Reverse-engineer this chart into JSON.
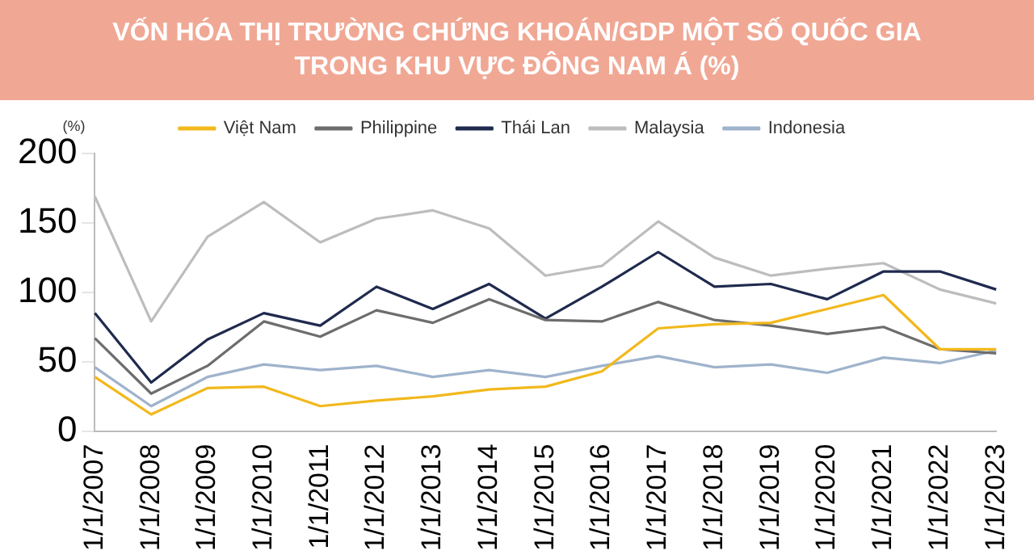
{
  "chart_data": {
    "type": "line",
    "title": "VỐN HÓA THỊ TRƯỜNG CHỨNG KHOÁN/GDP MỘT SỐ QUỐC GIA TRONG KHU VỰC ĐÔNG NAM Á (%)",
    "ylabel": "(%)",
    "categories": [
      "1/1/2007",
      "1/1/2008",
      "1/1/2009",
      "1/1/2010",
      "1/1/2011",
      "1/1/2012",
      "1/1/2013",
      "1/1/2014",
      "1/1/2015",
      "1/1/2016",
      "1/1/2017",
      "1/1/2018",
      "1/1/2019",
      "1/1/2020",
      "1/1/2021",
      "1/1/2022",
      "1/1/2023"
    ],
    "series": [
      {
        "name": "Việt Nam",
        "color": "#f2b81c",
        "values": [
          39,
          12,
          31,
          32,
          18,
          22,
          25,
          30,
          32,
          43,
          74,
          77,
          78,
          88,
          98,
          59,
          59
        ]
      },
      {
        "name": "Philippine",
        "color": "#6d6d6d",
        "values": [
          67,
          27,
          47,
          79,
          68,
          87,
          78,
          95,
          80,
          79,
          93,
          80,
          76,
          70,
          75,
          59,
          56
        ]
      },
      {
        "name": "Thái Lan",
        "color": "#1f2a4e",
        "values": [
          85,
          35,
          66,
          85,
          76,
          104,
          88,
          106,
          81,
          104,
          129,
          104,
          106,
          95,
          115,
          115,
          102
        ]
      },
      {
        "name": "Malaysia",
        "color": "#bdbdbd",
        "values": [
          169,
          79,
          140,
          165,
          136,
          153,
          159,
          146,
          112,
          119,
          151,
          125,
          112,
          117,
          121,
          102,
          92
        ]
      },
      {
        "name": "Indonesia",
        "color": "#9fb3cc",
        "values": [
          46,
          18,
          39,
          48,
          44,
          47,
          39,
          44,
          39,
          47,
          54,
          46,
          48,
          42,
          53,
          49,
          58
        ]
      }
    ],
    "ylim": [
      0,
      200
    ],
    "yticks": [
      0,
      50,
      100,
      150,
      200
    ],
    "grid": false,
    "legend": "top",
    "marker": "none",
    "line_style": "solid"
  }
}
